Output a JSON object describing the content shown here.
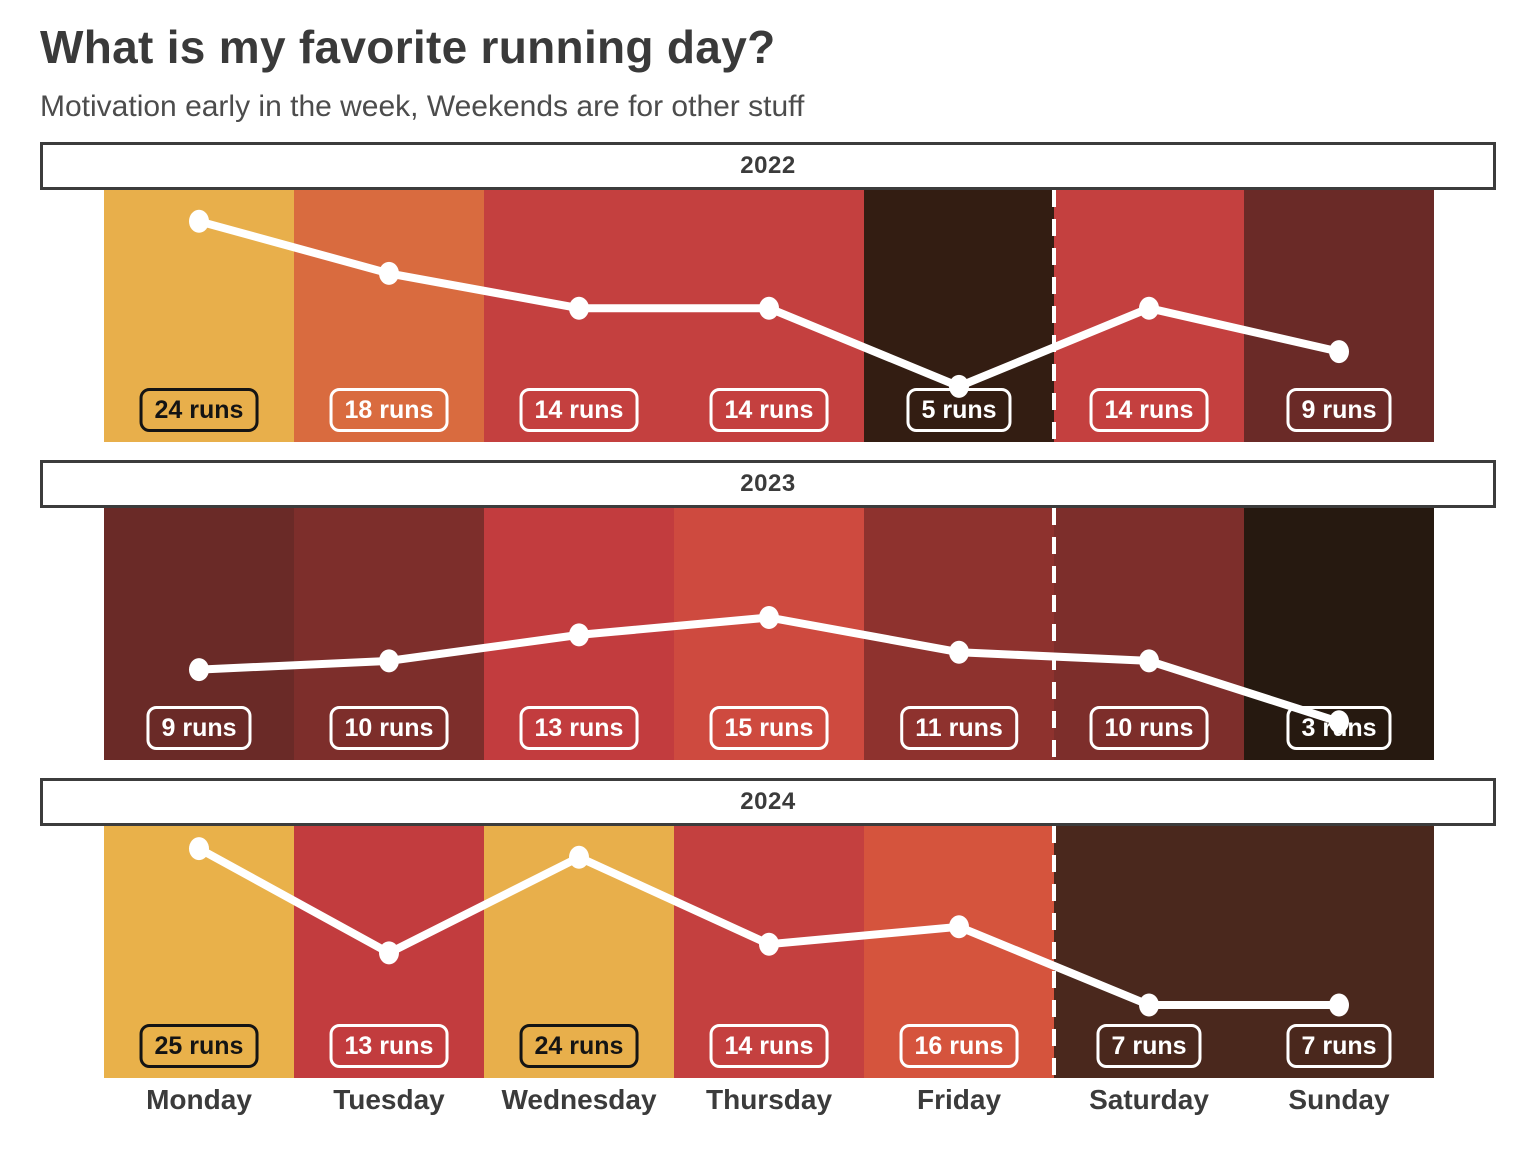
{
  "chart_data": {
    "type": "line",
    "title": "What is my favorite running day?",
    "subtitle": "Motivation early in the week, Weekends are for other stuff",
    "categories": [
      "Monday",
      "Tuesday",
      "Wednesday",
      "Thursday",
      "Friday",
      "Saturday",
      "Sunday"
    ],
    "series": [
      {
        "name": "2022",
        "values": [
          24,
          18,
          14,
          14,
          5,
          14,
          9
        ]
      },
      {
        "name": "2023",
        "values": [
          9,
          10,
          13,
          15,
          11,
          10,
          3
        ]
      },
      {
        "name": "2024",
        "values": [
          25,
          13,
          24,
          14,
          16,
          7,
          7
        ]
      }
    ],
    "ylim": [
      0,
      29
    ],
    "value_label_format": "{v} runs",
    "weekend_divider_after": "Friday",
    "grid": false,
    "legend_position": "none",
    "line_color": "#FFFFFF",
    "point_color": "#FFFFFF",
    "divider_color": "#FFFFFF",
    "background_colors_by_value": {
      "3": "#261910",
      "5": "#331D12",
      "7": "#4A281D",
      "9": "#6A2A27",
      "10": "#7D2E2B",
      "11": "#8E322E",
      "13": "#C23C3E",
      "14": "#C4403F",
      "15": "#CE4A3F",
      "16": "#D5543D",
      "18": "#D96B3F",
      "24": "#E8AF4B",
      "25": "#E9B14A"
    },
    "dark_label_values": [
      24,
      25
    ]
  },
  "styles": {
    "title_color": "#3A3A3A",
    "subtitle_color": "#4C4C4C",
    "header_border_color": "#3C3C3C",
    "day_label_color": "#3B3B3B",
    "dark_text_color": "#141414"
  }
}
